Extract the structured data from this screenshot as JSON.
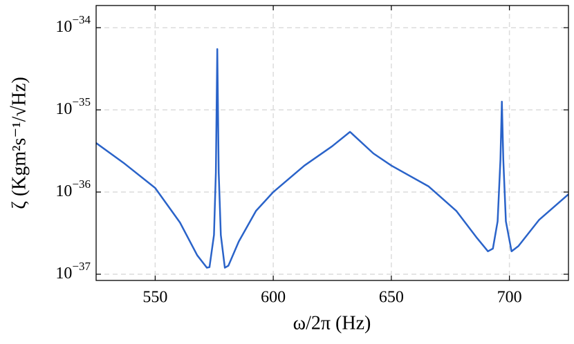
{
  "chart_data": {
    "type": "line",
    "xlabel": "ω/2π (Hz)",
    "ylabel": "ζ (Kgm²s⁻¹/√Hz)",
    "x": [
      525,
      537.1,
      550,
      560.5,
      567.8,
      571.9,
      573,
      574.9,
      575.7,
      576.3,
      576.9,
      577.8,
      579.5,
      581,
      585.4,
      592.7,
      600,
      613.2,
      624.9,
      632.5,
      642.4,
      650,
      665.8,
      677.5,
      686.3,
      690.9,
      693,
      695,
      696.2,
      696.8,
      697.4,
      698.5,
      700.9,
      703.8,
      712.6,
      725
    ],
    "values": [
      3.95e-36,
      2.21e-36,
      1.12e-36,
      4.26e-37,
      1.7e-37,
      1.2e-37,
      1.22e-37,
      3e-37,
      1.73e-36,
      5.5e-35,
      1.73e-36,
      3e-37,
      1.2e-37,
      1.27e-37,
      2.5e-37,
      5.9e-37,
      1e-36,
      2.1e-36,
      3.6e-36,
      5.4e-36,
      2.95e-36,
      2.1e-36,
      1.17e-36,
      5.9e-37,
      2.75e-37,
      1.9e-37,
      2.05e-37,
      4.4e-37,
      2.5e-36,
      1.26e-35,
      2.5e-36,
      4.4e-37,
      1.9e-37,
      2.2e-37,
      4.6e-37,
      9.4e-37
    ],
    "color": "#2a63c9",
    "xlim": [
      525,
      725
    ],
    "xticks": [
      550,
      600,
      650,
      700
    ],
    "ylim": [
      8.4e-38,
      1.86e-34
    ],
    "yscale": "log",
    "yticks": [
      {
        "value": 1e-37,
        "label": "10−37"
      },
      {
        "value": 1e-36,
        "label": "10−36"
      },
      {
        "value": 1e-35,
        "label": "10−35"
      },
      {
        "value": 1e-34,
        "label": "10−34"
      }
    ],
    "grid": true
  }
}
